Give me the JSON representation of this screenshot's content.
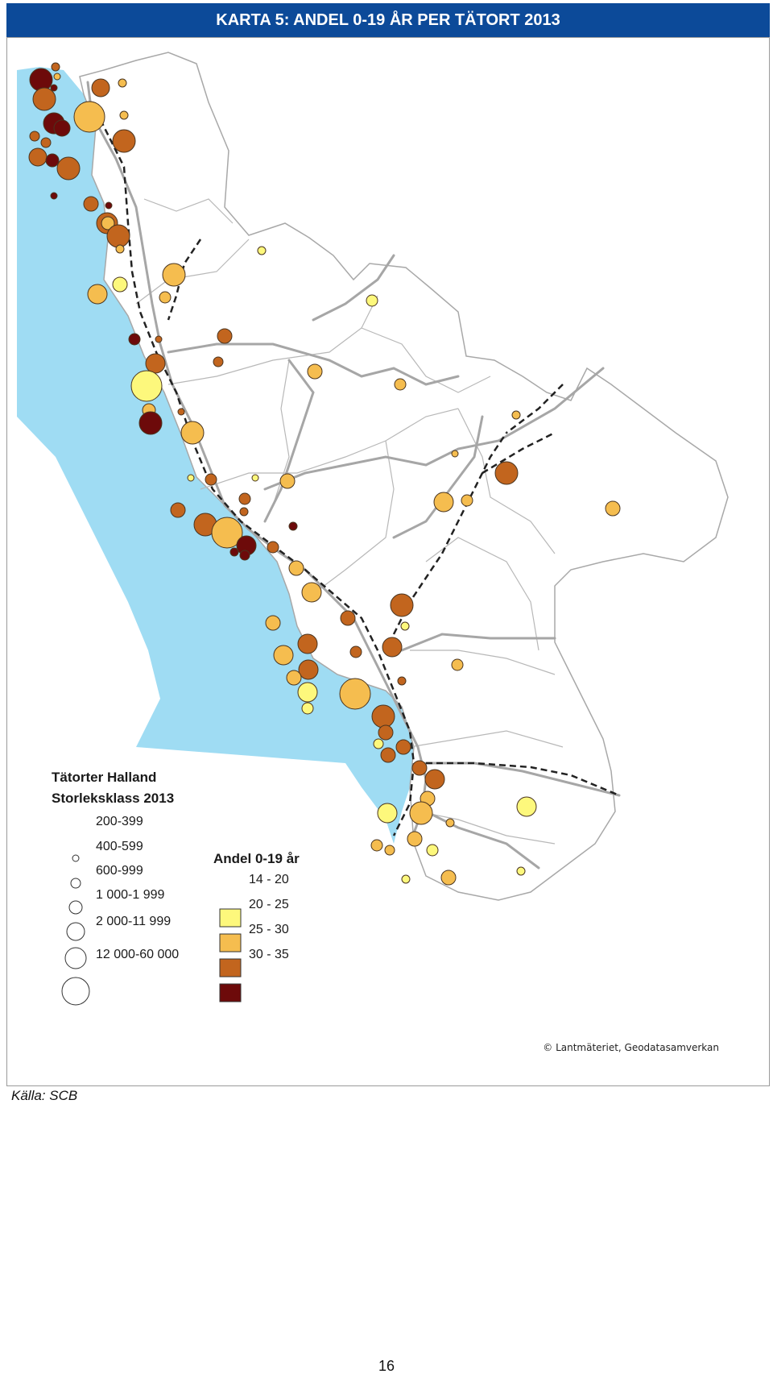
{
  "title": "KARTA 5: ANDEL 0-19 ÅR PER TÄTORT 2013",
  "colors": {
    "title_bar": "#0c4a99",
    "sea": "#9fdcf3",
    "roads": "#a6a6a6",
    "borders": "#b0b0b0",
    "class_14_20": "#fdf87c",
    "class_20_25": "#f5bd4f",
    "class_25_30": "#c2651e",
    "class_30_35": "#6d0a0a"
  },
  "legend": {
    "size_title_1": "Tätorter Halland",
    "size_title_2": "Storleksklass 2013",
    "size_classes": [
      "200-399",
      "400-599",
      "600-999",
      "1 000-1 999",
      "2 000-11 999",
      "12 000-60 000"
    ],
    "color_title": "Andel 0-19 år",
    "color_classes": [
      "14 - 20",
      "20 - 25",
      "25 - 30",
      "30 - 35"
    ]
  },
  "credit": "© Lantmäteriet, Geodatasamverkan",
  "source": "Källa: SCB",
  "page_number": "16"
}
